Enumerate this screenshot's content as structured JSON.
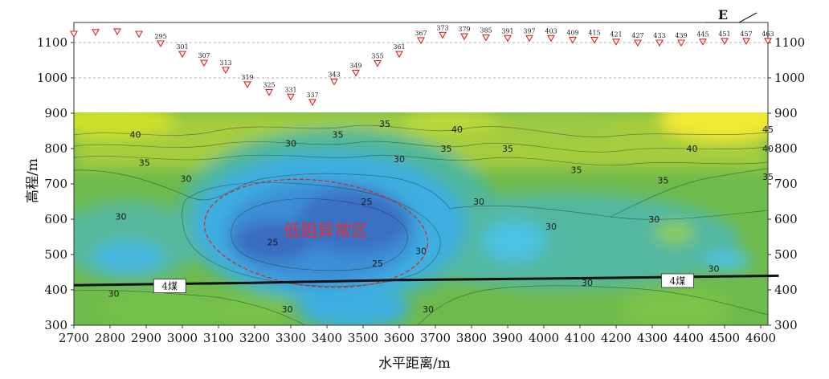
{
  "chart_data": {
    "type": "heatmap",
    "xlabel": "水平距离/m",
    "ylabel": "高程/m",
    "xlim": [
      2700,
      4650
    ],
    "ylim": [
      300,
      1130
    ],
    "x_ticks": [
      "2700",
      "2800",
      "2900",
      "3000",
      "3100",
      "3200",
      "3300",
      "3400",
      "3500",
      "3600",
      "3700",
      "3800",
      "3900",
      "4000",
      "4100",
      "4200",
      "4300",
      "4400",
      "4500",
      "4600"
    ],
    "y_ticks": [
      "300",
      "400",
      "500",
      "600",
      "700",
      "800",
      "900",
      "1000",
      "1100"
    ],
    "direction_label": "E",
    "anomaly_label": "低阻异常区",
    "anomaly_zone": {
      "cx": 3370,
      "cy": 560,
      "rx": 310,
      "ry": 150
    },
    "coal_seam": {
      "label": "4煤",
      "points": [
        [
          2700,
          413
        ],
        [
          3200,
          420
        ],
        [
          3600,
          428
        ],
        [
          4100,
          433
        ],
        [
          4650,
          440
        ]
      ]
    },
    "coal_labels": [
      {
        "text": "4煤",
        "x": 2965,
        "y": 410
      },
      {
        "text": "4煤",
        "x": 4370,
        "y": 425
      }
    ],
    "stations": [
      {
        "x": 2700,
        "y": 1125,
        "label": ""
      },
      {
        "x": 2760,
        "y": 1130,
        "label": ""
      },
      {
        "x": 2820,
        "y": 1132,
        "label": ""
      },
      {
        "x": 2880,
        "y": 1125,
        "label": ""
      },
      {
        "x": 2940,
        "y": 1098,
        "label": "295"
      },
      {
        "x": 3000,
        "y": 1068,
        "label": "301"
      },
      {
        "x": 3060,
        "y": 1043,
        "label": "307"
      },
      {
        "x": 3120,
        "y": 1023,
        "label": "313"
      },
      {
        "x": 3180,
        "y": 982,
        "label": "319"
      },
      {
        "x": 3240,
        "y": 960,
        "label": "325"
      },
      {
        "x": 3300,
        "y": 947,
        "label": "331"
      },
      {
        "x": 3360,
        "y": 932,
        "label": "337"
      },
      {
        "x": 3420,
        "y": 990,
        "label": "343"
      },
      {
        "x": 3480,
        "y": 1015,
        "label": "349"
      },
      {
        "x": 3540,
        "y": 1042,
        "label": "355"
      },
      {
        "x": 3600,
        "y": 1068,
        "label": "361"
      },
      {
        "x": 3660,
        "y": 1107,
        "label": "367"
      },
      {
        "x": 3720,
        "y": 1122,
        "label": "373"
      },
      {
        "x": 3780,
        "y": 1118,
        "label": "379"
      },
      {
        "x": 3840,
        "y": 1115,
        "label": "385"
      },
      {
        "x": 3900,
        "y": 1113,
        "label": "391"
      },
      {
        "x": 3960,
        "y": 1113,
        "label": "397"
      },
      {
        "x": 4020,
        "y": 1113,
        "label": "403"
      },
      {
        "x": 4080,
        "y": 1108,
        "label": "409"
      },
      {
        "x": 4140,
        "y": 1108,
        "label": "415"
      },
      {
        "x": 4200,
        "y": 1103,
        "label": "421"
      },
      {
        "x": 4260,
        "y": 1100,
        "label": "427"
      },
      {
        "x": 4320,
        "y": 1100,
        "label": "433"
      },
      {
        "x": 4380,
        "y": 1100,
        "label": "439"
      },
      {
        "x": 4440,
        "y": 1103,
        "label": "445"
      },
      {
        "x": 4500,
        "y": 1105,
        "label": "451"
      },
      {
        "x": 4560,
        "y": 1105,
        "label": "457"
      },
      {
        "x": 4620,
        "y": 1105,
        "label": "463"
      }
    ],
    "contour_labels": [
      {
        "text": "40",
        "x": 2870,
        "y": 840
      },
      {
        "text": "35",
        "x": 2895,
        "y": 760
      },
      {
        "text": "30",
        "x": 3010,
        "y": 715
      },
      {
        "text": "30",
        "x": 2830,
        "y": 608
      },
      {
        "text": "30",
        "x": 2810,
        "y": 390
      },
      {
        "text": "30",
        "x": 3290,
        "y": 345
      },
      {
        "text": "30",
        "x": 3300,
        "y": 815
      },
      {
        "text": "35",
        "x": 3430,
        "y": 840
      },
      {
        "text": "35",
        "x": 3560,
        "y": 870
      },
      {
        "text": "30",
        "x": 3600,
        "y": 770
      },
      {
        "text": "25",
        "x": 3510,
        "y": 650
      },
      {
        "text": "25",
        "x": 3250,
        "y": 535
      },
      {
        "text": "25",
        "x": 3540,
        "y": 475
      },
      {
        "text": "30",
        "x": 3660,
        "y": 510
      },
      {
        "text": "30",
        "x": 3680,
        "y": 345
      },
      {
        "text": "30",
        "x": 3820,
        "y": 650
      },
      {
        "text": "30",
        "x": 4020,
        "y": 580
      },
      {
        "text": "30",
        "x": 4120,
        "y": 420
      },
      {
        "text": "40",
        "x": 3760,
        "y": 855
      },
      {
        "text": "35",
        "x": 3730,
        "y": 800
      },
      {
        "text": "35",
        "x": 3900,
        "y": 800
      },
      {
        "text": "35",
        "x": 4090,
        "y": 740
      },
      {
        "text": "35",
        "x": 4330,
        "y": 710
      },
      {
        "text": "30",
        "x": 4305,
        "y": 600
      },
      {
        "text": "40",
        "x": 4410,
        "y": 800
      },
      {
        "text": "45",
        "x": 4620,
        "y": 855
      },
      {
        "text": "40",
        "x": 4620,
        "y": 800
      },
      {
        "text": "35",
        "x": 4620,
        "y": 720
      },
      {
        "text": "30",
        "x": 4470,
        "y": 460
      }
    ]
  }
}
